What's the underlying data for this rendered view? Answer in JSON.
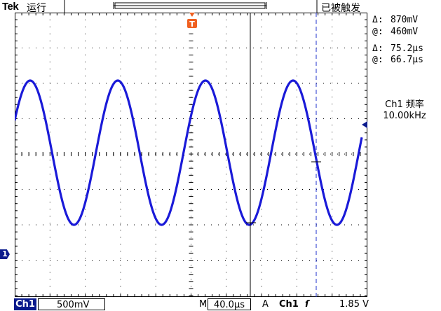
{
  "header": {
    "brand": "Tek",
    "run_status": "运行",
    "trigger_status": "已被触发",
    "trigger_marker": "T"
  },
  "measurements": {
    "voltage_delta_label": "Δ:",
    "voltage_delta": "870mV",
    "voltage_at_label": "@:",
    "voltage_at": "460mV",
    "time_delta_label": "Δ:",
    "time_delta": "75.2μs",
    "time_at_label": "@:",
    "time_at": "66.7μs",
    "freq_label": "Ch1 频率",
    "freq_value": "10.00kHz"
  },
  "channel_marker": "1",
  "footer": {
    "channel": "Ch1",
    "volts_per_div": "500mV",
    "timebase_label": "M",
    "timebase": "40.0μs",
    "trigger_mode": "A",
    "trigger_source": "Ch1",
    "trigger_slope": "ſ",
    "trigger_level": "1.85 V"
  },
  "colors": {
    "trace": "#1a1ad8",
    "grid": "#000000",
    "cursor": "#2233cc",
    "trigger": "#f06020"
  },
  "chart_data": {
    "type": "line",
    "waveform": "sine",
    "frequency_khz": 10.0,
    "divisions": {
      "horizontal": 10,
      "vertical": 8
    },
    "time_per_div_us": 40.0,
    "volts_per_div_mv": 500
  }
}
